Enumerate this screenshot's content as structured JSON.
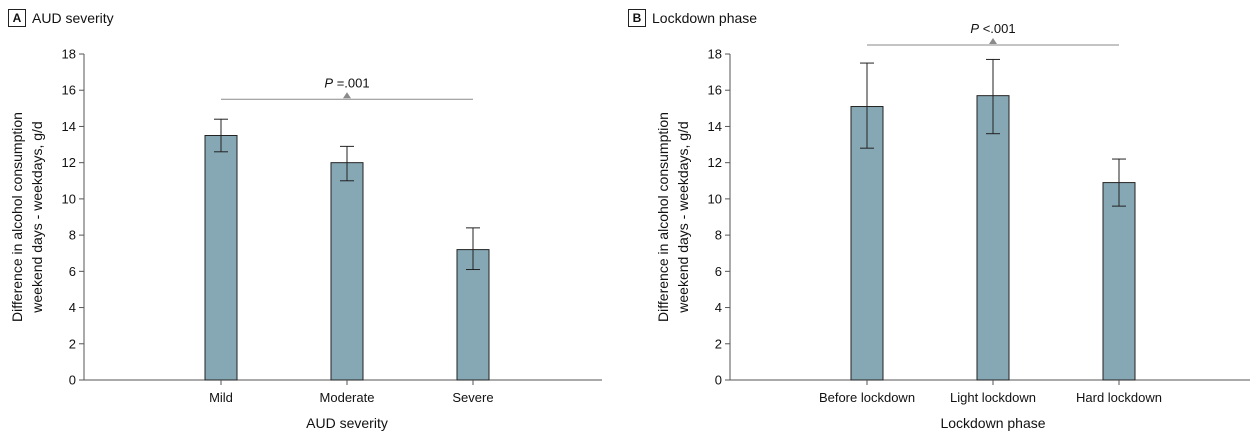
{
  "panels": [
    {
      "letter": "A",
      "title": "AUD severity",
      "chart_data": {
        "type": "bar",
        "categories": [
          "Mild",
          "Moderate",
          "Severe"
        ],
        "values": [
          13.5,
          12.0,
          7.2
        ],
        "error_low": [
          12.6,
          11.0,
          6.1
        ],
        "error_high": [
          14.4,
          12.9,
          8.4
        ],
        "xlabel": "AUD severity",
        "ylabel": "Difference in alcohol consumption weekend days - weekdays, g/d",
        "ylabel_lines": [
          "Difference in alcohol consumption",
          "weekend days - weekdays, g/d"
        ],
        "ylim": [
          0,
          18
        ],
        "yticks": [
          0,
          2,
          4,
          6,
          8,
          10,
          12,
          14,
          16,
          18
        ],
        "grid": false,
        "bar_color": "#86a8b5",
        "significance": {
          "p_prefix": "P",
          "p_text": " =.001",
          "y": 15.5,
          "from_category": 0,
          "to_category": 2
        }
      }
    },
    {
      "letter": "B",
      "title": "Lockdown phase",
      "chart_data": {
        "type": "bar",
        "categories": [
          "Before lockdown",
          "Light lockdown",
          "Hard lockdown"
        ],
        "values": [
          15.1,
          15.7,
          10.9
        ],
        "error_low": [
          12.8,
          13.6,
          9.6
        ],
        "error_high": [
          17.5,
          17.7,
          12.2
        ],
        "xlabel": "Lockdown phase",
        "ylabel": "Difference in alcohol consumption weekend days - weekdays, g/d",
        "ylabel_lines": [
          "Difference in alcohol consumption",
          "weekend days - weekdays, g/d"
        ],
        "ylim": [
          0,
          18
        ],
        "yticks": [
          0,
          2,
          4,
          6,
          8,
          10,
          12,
          14,
          16,
          18
        ],
        "grid": false,
        "bar_color": "#86a8b5",
        "significance": {
          "p_prefix": "P",
          "p_text": " <.001",
          "y": 18.5,
          "from_category": 0,
          "to_category": 2
        }
      }
    }
  ]
}
